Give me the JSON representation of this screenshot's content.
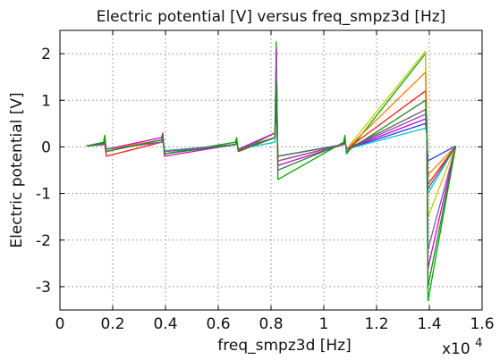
{
  "chart_data": {
    "type": "line",
    "title": "Electric potential [V] versus freq_smpz3d [Hz]",
    "xlabel": "freq_smpz3d [Hz]",
    "ylabel": "Electric potential [V]",
    "x_multiplier_label": "x10",
    "x_multiplier_exp": "4",
    "xlim": [
      0,
      16000
    ],
    "ylim": [
      -3.5,
      2.5
    ],
    "grid": true,
    "x_ticks": [
      0,
      2000,
      4000,
      6000,
      8000,
      10000,
      12000,
      14000,
      16000
    ],
    "x_tick_labels": [
      "0",
      "0.2",
      "0.4",
      "0.6",
      "0.8",
      "1",
      "1.2",
      "1.4",
      "1.6"
    ],
    "y_ticks": [
      2,
      1,
      0,
      -1,
      -2,
      -3
    ],
    "y_tick_labels": [
      "2",
      "1",
      "0",
      "-1",
      "-2",
      "-3"
    ],
    "series": [
      {
        "color": "#1f3fff",
        "x": [
          1000,
          1650,
          1700,
          1760,
          3850,
          3900,
          3960,
          6650,
          6700,
          6760,
          8150,
          8200,
          8260,
          10750,
          10800,
          10860,
          13850,
          13900,
          13950,
          15000
        ],
        "y": [
          0.02,
          0.05,
          0.1,
          -0.05,
          0.1,
          0.2,
          -0.1,
          0.05,
          0.1,
          -0.05,
          0.2,
          0.9,
          -0.2,
          0.05,
          0.1,
          -0.05,
          0.5,
          0.3,
          -0.3,
          0.02
        ]
      },
      {
        "color": "#00aa00",
        "x": [
          1000,
          1650,
          1700,
          1760,
          3850,
          3900,
          3960,
          6650,
          6700,
          6760,
          8150,
          8200,
          8260,
          10750,
          10800,
          10860,
          13850,
          13900,
          13950,
          15000
        ],
        "y": [
          0.02,
          0.1,
          0.25,
          -0.1,
          0.15,
          0.2,
          -0.15,
          0.1,
          0.2,
          -0.1,
          0.3,
          2.25,
          -0.7,
          0.1,
          0.25,
          -0.15,
          2.0,
          0.5,
          -3.3,
          0.02
        ]
      },
      {
        "color": "#ff1a1a",
        "x": [
          1000,
          1650,
          1700,
          1760,
          3850,
          3900,
          3960,
          6650,
          6700,
          6760,
          8150,
          8200,
          8260,
          10750,
          10800,
          10860,
          13850,
          13900,
          13950,
          15000
        ],
        "y": [
          0.02,
          0.05,
          0.05,
          -0.2,
          0.1,
          0.15,
          -0.1,
          0.05,
          0.1,
          -0.1,
          0.2,
          1.6,
          -0.3,
          0.05,
          0.15,
          -0.05,
          1.2,
          0.6,
          -0.8,
          0.02
        ]
      },
      {
        "color": "#00c8c8",
        "x": [
          1000,
          1650,
          1700,
          1760,
          3850,
          3900,
          3960,
          6650,
          6700,
          6760,
          8150,
          8200,
          8260,
          10750,
          10800,
          10860,
          13850,
          13900,
          13950,
          15000
        ],
        "y": [
          0.02,
          0.05,
          0.08,
          -0.05,
          0.1,
          0.12,
          -0.08,
          0.05,
          0.08,
          -0.05,
          0.1,
          1.2,
          -0.2,
          0.05,
          0.1,
          -0.05,
          0.4,
          0.3,
          -1.0,
          0.02
        ]
      },
      {
        "color": "#d400d4",
        "x": [
          1000,
          1650,
          1700,
          1760,
          3850,
          3900,
          3960,
          6650,
          6700,
          6760,
          8150,
          8200,
          8260,
          10750,
          10800,
          10860,
          13850,
          13900,
          13950,
          15000
        ],
        "y": [
          0.02,
          0.05,
          0.1,
          -0.05,
          0.2,
          0.3,
          -0.2,
          0.05,
          0.1,
          -0.05,
          0.3,
          2.1,
          -0.4,
          0.05,
          0.1,
          -0.05,
          0.6,
          0.4,
          -2.6,
          0.02
        ]
      },
      {
        "color": "#c8c800",
        "x": [
          1000,
          1650,
          1700,
          1760,
          3850,
          3900,
          3960,
          6650,
          6700,
          6760,
          8150,
          8200,
          8260,
          10750,
          10800,
          10860,
          13850,
          13900,
          13950,
          15000
        ],
        "y": [
          0.02,
          0.05,
          0.1,
          -0.05,
          0.1,
          0.15,
          -0.1,
          0.05,
          0.12,
          -0.05,
          0.2,
          1.8,
          -0.3,
          0.05,
          0.15,
          -0.05,
          2.05,
          0.5,
          -1.5,
          0.02
        ]
      },
      {
        "color": "#ff7f00",
        "x": [
          1000,
          1650,
          1700,
          1760,
          3850,
          3900,
          3960,
          6650,
          6700,
          6760,
          8150,
          8200,
          8260,
          10750,
          10800,
          10860,
          13850,
          13900,
          13950,
          15000
        ],
        "y": [
          0.02,
          0.05,
          0.08,
          -0.05,
          0.15,
          0.2,
          -0.1,
          0.05,
          0.1,
          -0.05,
          0.2,
          1.5,
          -0.3,
          0.05,
          0.1,
          -0.05,
          1.6,
          0.3,
          -0.6,
          0.02
        ]
      },
      {
        "color": "#606060",
        "x": [
          1000,
          1650,
          1700,
          1760,
          3850,
          3900,
          3960,
          6650,
          6700,
          6760,
          8150,
          8200,
          8260,
          10750,
          10800,
          10860,
          13850,
          13900,
          13950,
          15000
        ],
        "y": [
          0.02,
          0.05,
          0.1,
          -0.05,
          0.1,
          0.15,
          -0.1,
          0.05,
          0.1,
          -0.05,
          0.2,
          1.0,
          -0.2,
          0.05,
          0.1,
          -0.05,
          0.8,
          0.4,
          -0.9,
          0.02
        ]
      },
      {
        "color": "#8c4fb0",
        "x": [
          1000,
          1650,
          1700,
          1760,
          3850,
          3900,
          3960,
          6650,
          6700,
          6760,
          8150,
          8200,
          8260,
          10750,
          10800,
          10860,
          13850,
          13900,
          13950,
          15000
        ],
        "y": [
          0.02,
          0.05,
          0.08,
          -0.05,
          0.1,
          0.15,
          -0.1,
          0.05,
          0.08,
          -0.05,
          0.2,
          1.9,
          -0.3,
          0.05,
          0.1,
          -0.05,
          0.7,
          0.4,
          -2.2,
          0.02
        ]
      },
      {
        "color": "#228822",
        "x": [
          1000,
          1650,
          1700,
          1760,
          3850,
          3900,
          3960,
          6650,
          6700,
          6760,
          8150,
          8200,
          8260,
          10750,
          10800,
          10860,
          13850,
          13900,
          13950,
          15000
        ],
        "y": [
          0.02,
          0.08,
          0.15,
          -0.1,
          0.15,
          0.25,
          -0.15,
          0.05,
          0.12,
          -0.08,
          0.2,
          1.4,
          -0.5,
          0.08,
          0.18,
          -0.1,
          1.0,
          0.5,
          -3.0,
          0.02
        ]
      }
    ]
  }
}
